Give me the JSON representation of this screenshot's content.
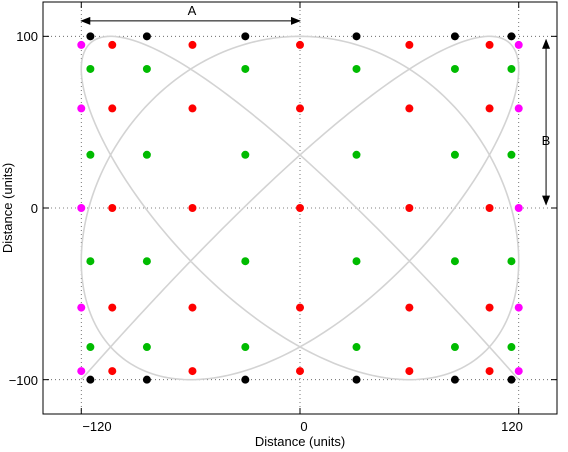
{
  "chart_data": {
    "type": "scatter",
    "title": "",
    "xlabel": "Distance (units)",
    "ylabel": "Distance (units)",
    "xlim": [
      -141,
      141
    ],
    "ylim": [
      -120,
      120
    ],
    "xticks": [
      -120,
      0,
      120
    ],
    "xtick_labels": [
      "−120",
      "0",
      "120"
    ],
    "yticks": [
      -100,
      0,
      100
    ],
    "ytick_labels": [
      "−100",
      "0",
      "100"
    ],
    "grid": true,
    "curve": {
      "description_free": true,
      "x_amplitude": 120,
      "y_amplitude": 100,
      "x_frequency": 5,
      "y_frequency": 6,
      "color": "#d3d3d3"
    },
    "series": [
      {
        "color": "#ff00ff",
        "points": [
          [
            -120,
            95
          ],
          [
            -120,
            58
          ],
          [
            -120,
            0
          ],
          [
            -120,
            -58
          ],
          [
            -120,
            -95
          ],
          [
            120,
            95
          ],
          [
            120,
            58
          ],
          [
            120,
            0
          ],
          [
            120,
            -58
          ],
          [
            120,
            -95
          ]
        ]
      },
      {
        "color": "#000000",
        "points": [
          [
            -115,
            100
          ],
          [
            -84,
            100
          ],
          [
            -30,
            100
          ],
          [
            31,
            100
          ],
          [
            85,
            100
          ],
          [
            116,
            100
          ],
          [
            -115,
            -100
          ],
          [
            -84,
            -100
          ],
          [
            -30,
            -100
          ],
          [
            31,
            -100
          ],
          [
            85,
            -100
          ],
          [
            116,
            -100
          ]
        ]
      },
      {
        "color": "#ff0000",
        "points": [
          [
            -103,
            95
          ],
          [
            -59,
            95
          ],
          [
            0,
            95
          ],
          [
            60,
            95
          ],
          [
            104,
            95
          ],
          [
            -103,
            58
          ],
          [
            -59,
            58
          ],
          [
            0,
            58
          ],
          [
            60,
            58
          ],
          [
            104,
            58
          ],
          [
            -103,
            0
          ],
          [
            -59,
            0
          ],
          [
            0,
            0
          ],
          [
            60,
            0
          ],
          [
            104,
            0
          ],
          [
            -103,
            -58
          ],
          [
            -59,
            -58
          ],
          [
            0,
            -58
          ],
          [
            60,
            -58
          ],
          [
            104,
            -58
          ],
          [
            -103,
            -95
          ],
          [
            -59,
            -95
          ],
          [
            0,
            -95
          ],
          [
            60,
            -95
          ],
          [
            104,
            -95
          ]
        ]
      },
      {
        "color": "#00bb00",
        "points": [
          [
            -115,
            81
          ],
          [
            -84,
            81
          ],
          [
            -30,
            81
          ],
          [
            31,
            81
          ],
          [
            85,
            81
          ],
          [
            116,
            81
          ],
          [
            -115,
            31
          ],
          [
            -84,
            31
          ],
          [
            -30,
            31
          ],
          [
            31,
            31
          ],
          [
            85,
            31
          ],
          [
            116,
            31
          ],
          [
            -115,
            -31
          ],
          [
            -84,
            -31
          ],
          [
            -30,
            -31
          ],
          [
            31,
            -31
          ],
          [
            85,
            -31
          ],
          [
            116,
            -31
          ],
          [
            -115,
            -81
          ],
          [
            -84,
            -81
          ],
          [
            -30,
            -81
          ],
          [
            31,
            -81
          ],
          [
            85,
            -81
          ],
          [
            116,
            -81
          ]
        ]
      }
    ],
    "annotations": {
      "A": {
        "label": "A",
        "from": [
          -120,
          109
        ],
        "to": [
          0,
          109
        ]
      },
      "B": {
        "label": "B",
        "from": [
          135,
          98
        ],
        "to": [
          135,
          2
        ]
      }
    }
  }
}
